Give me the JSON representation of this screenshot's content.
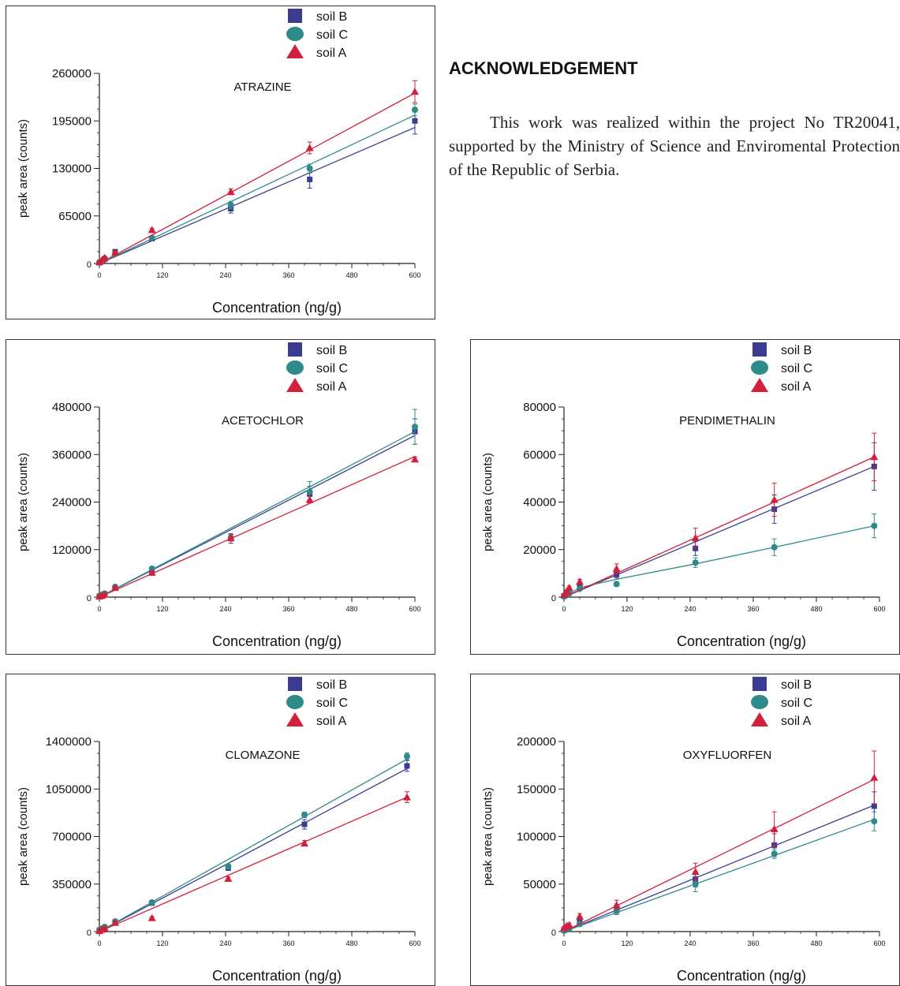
{
  "acknowledgement": {
    "title": "ACKNOWLEDGEMENT",
    "text": "This work was realized within the project No TR20041, supported by the Ministry of Science and Enviromental Protection of the Republic of Serbia."
  },
  "legend": {
    "soil_b": "soil B",
    "soil_c": "soil C",
    "soil_a": "soil A"
  },
  "colors": {
    "soil_b": "#3a3d8f",
    "soil_c": "#2f8a8a",
    "soil_a": "#d21f3c"
  },
  "chart_data": [
    {
      "id": "atrazine",
      "type": "scatter",
      "title": "ATRAZINE",
      "xlabel": "Concentration (ng/g)",
      "ylabel": "peak area (counts)",
      "xlim": [
        0,
        600
      ],
      "xticks": [
        0,
        120,
        240,
        360,
        480,
        600
      ],
      "ylim": [
        0,
        260000
      ],
      "yticks": [
        0,
        65000,
        130000,
        195000,
        260000
      ],
      "series": [
        {
          "name": "soil B",
          "x": [
            0,
            5,
            10,
            30,
            100,
            250,
            400,
            600
          ],
          "y": [
            1000,
            3000,
            6000,
            16000,
            34000,
            75000,
            115000,
            195000
          ],
          "err": [
            400,
            700,
            1000,
            1500,
            2500,
            6000,
            12000,
            18000
          ],
          "fit": [
            [
              0,
              0
            ],
            [
              600,
              186000
            ]
          ]
        },
        {
          "name": "soil C",
          "x": [
            0,
            5,
            10,
            30,
            100,
            250,
            400,
            600
          ],
          "y": [
            1500,
            3500,
            7000,
            13000,
            35000,
            80000,
            130000,
            210000
          ],
          "err": [
            400,
            700,
            1000,
            1500,
            2000,
            5000,
            6000,
            8000
          ],
          "fit": [
            [
              0,
              0
            ],
            [
              600,
              203000
            ]
          ]
        },
        {
          "name": "soil A",
          "x": [
            0,
            5,
            10,
            30,
            100,
            250,
            400,
            600
          ],
          "y": [
            2000,
            5000,
            8000,
            15000,
            46000,
            98000,
            158000,
            235000
          ],
          "err": [
            400,
            700,
            1000,
            1500,
            2000,
            4000,
            8000,
            15000
          ],
          "fit": [
            [
              0,
              0
            ],
            [
              600,
              233000
            ]
          ]
        }
      ]
    },
    {
      "id": "acetochlor",
      "type": "scatter",
      "title": "ACETOCHLOR",
      "xlabel": "Concentration (ng/g)",
      "ylabel": "peak area (counts)",
      "xlim": [
        0,
        600
      ],
      "xticks": [
        0,
        120,
        240,
        360,
        480,
        600
      ],
      "ylim": [
        0,
        480000
      ],
      "yticks": [
        0,
        120000,
        240000,
        360000,
        480000
      ],
      "series": [
        {
          "name": "soil B",
          "x": [
            0,
            5,
            10,
            30,
            100,
            250,
            400,
            600
          ],
          "y": [
            2000,
            5000,
            8000,
            24000,
            66000,
            148000,
            260000,
            418000
          ],
          "err": [
            800,
            1200,
            1500,
            3000,
            5000,
            12000,
            20000,
            32000
          ],
          "fit": [
            [
              0,
              0
            ],
            [
              600,
              408000
            ]
          ]
        },
        {
          "name": "soil C",
          "x": [
            0,
            5,
            10,
            30,
            100,
            250,
            400,
            600
          ],
          "y": [
            3000,
            6000,
            9000,
            26000,
            72000,
            150000,
            266000,
            430000
          ],
          "err": [
            800,
            1200,
            1500,
            3000,
            5000,
            8000,
            26000,
            44000
          ],
          "fit": [
            [
              0,
              0
            ],
            [
              600,
              418000
            ]
          ]
        },
        {
          "name": "soil A",
          "x": [
            0,
            5,
            10,
            30,
            100,
            250,
            400,
            600
          ],
          "y": [
            2000,
            4000,
            7000,
            24000,
            62000,
            150000,
            246000,
            348000
          ],
          "err": [
            800,
            1200,
            1500,
            3000,
            4000,
            8000,
            8000,
            6000
          ],
          "fit": [
            [
              0,
              0
            ],
            [
              600,
              355000
            ]
          ]
        }
      ]
    },
    {
      "id": "pendimethalin",
      "type": "scatter",
      "title": "PENDIMETHALIN",
      "xlabel": "Concentration (ng/g)",
      "ylabel": "peak area (counts)",
      "xlim": [
        0,
        600
      ],
      "xticks": [
        0,
        120,
        240,
        360,
        480,
        600
      ],
      "ylim": [
        0,
        80000
      ],
      "yticks": [
        0,
        20000,
        40000,
        60000,
        80000
      ],
      "series": [
        {
          "name": "soil B",
          "x": [
            0,
            5,
            10,
            30,
            100,
            250,
            400,
            590
          ],
          "y": [
            500,
            1500,
            2500,
            5000,
            9500,
            20500,
            37000,
            55000
          ],
          "err": [
            300,
            400,
            500,
            800,
            1500,
            3000,
            6000,
            10000
          ],
          "fit": [
            [
              0,
              0
            ],
            [
              590,
              55000
            ]
          ]
        },
        {
          "name": "soil C",
          "x": [
            0,
            5,
            10,
            30,
            100,
            250,
            400,
            590
          ],
          "y": [
            200,
            800,
            1500,
            3500,
            5500,
            14500,
            21000,
            30000
          ],
          "err": [
            200,
            300,
            400,
            600,
            1000,
            2000,
            3500,
            5000
          ],
          "fit": [
            [
              0,
              0
            ],
            [
              30,
              4000
            ],
            [
              100,
              7500
            ],
            [
              250,
              14000
            ],
            [
              400,
              21000
            ],
            [
              590,
              30000
            ]
          ]
        },
        {
          "name": "soil A",
          "x": [
            0,
            5,
            10,
            30,
            100,
            250,
            400,
            590
          ],
          "y": [
            1000,
            2500,
            4000,
            6500,
            12000,
            25000,
            41000,
            59000
          ],
          "err": [
            300,
            400,
            600,
            1000,
            2000,
            4000,
            7000,
            10000
          ],
          "fit": [
            [
              0,
              0
            ],
            [
              590,
              59000
            ]
          ]
        }
      ]
    },
    {
      "id": "clomazone",
      "type": "scatter",
      "title": "CLOMAZONE",
      "xlabel": "Concentration (ng/g)",
      "ylabel": "peak area (counts)",
      "xlim": [
        0,
        600
      ],
      "xticks": [
        0,
        120,
        240,
        360,
        480,
        600
      ],
      "ylim": [
        0,
        1400000
      ],
      "yticks": [
        0,
        350000,
        700000,
        1050000,
        1400000
      ],
      "series": [
        {
          "name": "soil B",
          "x": [
            0,
            5,
            10,
            30,
            100,
            245,
            390,
            585
          ],
          "y": [
            10000,
            20000,
            30000,
            70000,
            210000,
            470000,
            790000,
            1220000
          ],
          "err": [
            4000,
            6000,
            8000,
            10000,
            15000,
            20000,
            35000,
            40000
          ],
          "fit": [
            [
              0,
              0
            ],
            [
              585,
              1200000
            ]
          ]
        },
        {
          "name": "soil C",
          "x": [
            0,
            5,
            10,
            30,
            100,
            245,
            390,
            585
          ],
          "y": [
            12000,
            22000,
            34000,
            75000,
            215000,
            480000,
            860000,
            1290000
          ],
          "err": [
            4000,
            6000,
            8000,
            10000,
            12000,
            18000,
            20000,
            25000
          ],
          "fit": [
            [
              0,
              0
            ],
            [
              585,
              1270000
            ]
          ]
        },
        {
          "name": "soil A",
          "x": [
            0,
            5,
            10,
            30,
            100,
            245,
            390,
            585
          ],
          "y": [
            5000,
            15000,
            25000,
            65000,
            100000,
            390000,
            650000,
            990000
          ],
          "err": [
            4000,
            6000,
            8000,
            10000,
            10000,
            12000,
            20000,
            40000
          ],
          "fit": [
            [
              0,
              0
            ],
            [
              585,
              990000
            ]
          ]
        }
      ]
    },
    {
      "id": "oxyfluorfen",
      "type": "scatter",
      "title": "OXYFLUORFEN",
      "xlabel": "Concentration (ng/g)",
      "ylabel": "peak area (counts)",
      "xlim": [
        0,
        600
      ],
      "xticks": [
        0,
        120,
        240,
        360,
        480,
        600
      ],
      "ylim": [
        0,
        200000
      ],
      "yticks": [
        0,
        50000,
        100000,
        150000,
        200000
      ],
      "series": [
        {
          "name": "soil B",
          "x": [
            0,
            5,
            10,
            30,
            100,
            250,
            400,
            590
          ],
          "y": [
            1500,
            2500,
            4000,
            10000,
            22000,
            55000,
            91000,
            132000
          ],
          "err": [
            700,
            1000,
            1500,
            2500,
            4000,
            8000,
            12000,
            15000
          ],
          "fit": [
            [
              0,
              0
            ],
            [
              590,
              133000
            ]
          ]
        },
        {
          "name": "soil C",
          "x": [
            0,
            5,
            10,
            30,
            100,
            250,
            400,
            590
          ],
          "y": [
            1000,
            2000,
            3500,
            8000,
            22000,
            50000,
            82000,
            116000
          ],
          "err": [
            700,
            1000,
            1500,
            2500,
            4000,
            8000,
            5000,
            10000
          ],
          "fit": [
            [
              0,
              0
            ],
            [
              590,
              118000
            ]
          ]
        },
        {
          "name": "soil A",
          "x": [
            0,
            5,
            10,
            30,
            100,
            250,
            400,
            590
          ],
          "y": [
            4000,
            6000,
            7000,
            16000,
            28000,
            63000,
            108000,
            162000
          ],
          "err": [
            1000,
            1500,
            2000,
            3000,
            5000,
            9000,
            18000,
            28000
          ],
          "fit": [
            [
              0,
              0
            ],
            [
              590,
              160000
            ]
          ]
        }
      ]
    }
  ]
}
